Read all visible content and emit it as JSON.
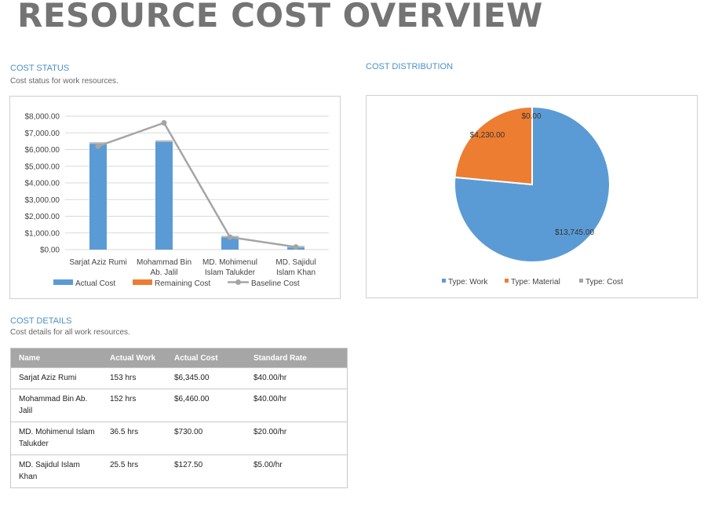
{
  "report_title": "RESOURCE COST OVERVIEW",
  "cost_status": {
    "heading": "COST STATUS",
    "subtitle": "Cost status for work resources."
  },
  "cost_distribution": {
    "heading": "COST DISTRIBUTION"
  },
  "cost_details": {
    "heading": "COST DETAILS",
    "subtitle": "Cost details for all work resources.",
    "columns": [
      "Name",
      "Actual Work",
      "Actual Cost",
      "Standard Rate"
    ],
    "rows": [
      [
        "Sarjat Aziz Rumi",
        "153 hrs",
        "$6,345.00",
        "$40.00/hr"
      ],
      [
        "Mohammad Bin Ab. Jalil",
        "152 hrs",
        "$6,460.00",
        "$40.00/hr"
      ],
      [
        "MD. Mohimenul Islam Talukder",
        "36.5 hrs",
        "$730.00",
        "$20.00/hr"
      ],
      [
        "MD. Sajidul Islam Khan",
        "25.5 hrs",
        "$127.50",
        "$5.00/hr"
      ]
    ]
  },
  "chart_data": [
    {
      "type": "bar",
      "stacked": true,
      "categories": [
        [
          "Sarjat Aziz Rumi"
        ],
        [
          "Mohammad Bin",
          "Ab. Jalil"
        ],
        [
          "MD. Mohimenul",
          "Islam Talukder"
        ],
        [
          "MD. Sajidul",
          "Islam Khan"
        ]
      ],
      "series": [
        {
          "name": "Actual Cost",
          "kind": "bar",
          "color": "#5b9bd5",
          "values": [
            6345,
            6460,
            730,
            127.5
          ]
        },
        {
          "name": "Remaining Cost",
          "kind": "bar",
          "color": "#ed7d31",
          "values": [
            0,
            0,
            0,
            0
          ]
        },
        {
          "name": "Baseline Cost",
          "kind": "line",
          "color": "#a5a5a5",
          "values": [
            6200,
            7600,
            750,
            160
          ]
        }
      ],
      "ylim": [
        0,
        8000
      ],
      "yticks": [
        "$0.00",
        "$1,000.00",
        "$2,000.00",
        "$3,000.00",
        "$4,000.00",
        "$5,000.00",
        "$6,000.00",
        "$7,000.00",
        "$8,000.00"
      ],
      "legend": "bottom",
      "grid": true
    },
    {
      "type": "pie",
      "slices": [
        {
          "name": "Type: Work",
          "value": 13745,
          "label": "$13,745.00",
          "color": "#5b9bd5"
        },
        {
          "name": "Type: Material",
          "value": 4230,
          "label": "$4,230.00",
          "color": "#ed7d31"
        },
        {
          "name": "Type: Cost",
          "value": 0,
          "label": "$0.00",
          "color": "#a5a5a5"
        }
      ],
      "legend": "bottom"
    }
  ]
}
